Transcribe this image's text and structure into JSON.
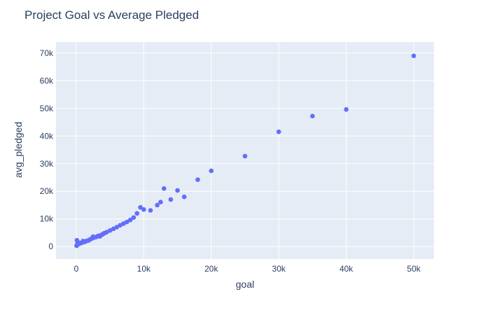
{
  "chart_data": {
    "type": "scatter",
    "title": "Project Goal vs Average Pledged",
    "xlabel": "goal",
    "ylabel": "avg_pledged",
    "xlim": [
      -3000,
      53000
    ],
    "ylim": [
      -4500,
      74000
    ],
    "xticks": [
      0,
      10000,
      20000,
      30000,
      40000,
      50000
    ],
    "xtick_labels": [
      "0",
      "10k",
      "20k",
      "30k",
      "40k",
      "50k"
    ],
    "yticks": [
      0,
      10000,
      20000,
      30000,
      40000,
      50000,
      60000,
      70000
    ],
    "ytick_labels": [
      "0",
      "10k",
      "20k",
      "30k",
      "40k",
      "50k",
      "60k",
      "70k"
    ],
    "grid": true,
    "colors": {
      "marker": "#636efa",
      "plot_bg": "#e5ecf6",
      "grid": "#ffffff",
      "text": "#2a3f5f"
    },
    "x": [
      50,
      100,
      150,
      200,
      250,
      300,
      400,
      500,
      600,
      700,
      800,
      900,
      1000,
      1200,
      1300,
      1500,
      1600,
      1800,
      2000,
      2200,
      2400,
      2500,
      2700,
      3000,
      3200,
      3500,
      3800,
      4000,
      4200,
      4500,
      5000,
      5500,
      6000,
      6500,
      7000,
      7500,
      8000,
      8500,
      9000,
      9500,
      10000,
      11000,
      12000,
      12500,
      13000,
      14000,
      15000,
      16000,
      18000,
      20000,
      25000,
      30000,
      35000,
      40000,
      50000,
      100,
      200,
      1000,
      2500,
      3500
    ],
    "y": [
      300,
      500,
      600,
      700,
      800,
      900,
      1000,
      1100,
      1200,
      1300,
      1400,
      1500,
      1600,
      1700,
      1800,
      2000,
      2100,
      2200,
      2500,
      2800,
      3000,
      3200,
      3300,
      3500,
      3800,
      4000,
      4300,
      4600,
      4900,
      5200,
      5800,
      6400,
      7000,
      7700,
      8300,
      8900,
      9600,
      10500,
      12000,
      14200,
      13400,
      13100,
      15000,
      16100,
      21000,
      17000,
      20300,
      18000,
      24200,
      27400,
      32700,
      41500,
      47200,
      49600,
      69000,
      2300,
      1700,
      2000,
      3600,
      3700
    ]
  }
}
